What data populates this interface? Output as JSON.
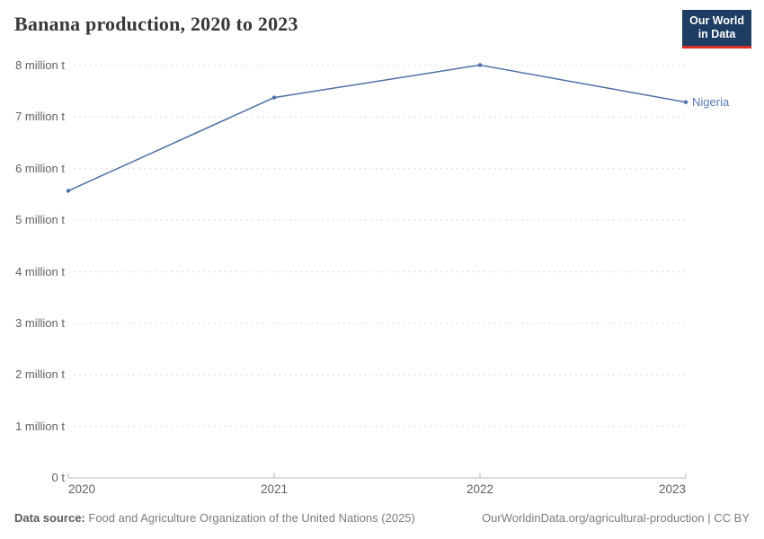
{
  "header": {
    "title": "Banana production, 2020 to 2023",
    "logo": {
      "line1": "Our World",
      "line2": "in Data"
    }
  },
  "chart_data": {
    "type": "line",
    "title": "Banana production, 2020 to 2023",
    "x": [
      2020,
      2021,
      2022,
      2023
    ],
    "x_tick_labels": [
      "2020",
      "2021",
      "2022",
      "2023"
    ],
    "series": [
      {
        "name": "Nigeria",
        "values": [
          5570000,
          7380000,
          8010000,
          7290000
        ],
        "color": "#4d6fa5"
      }
    ],
    "unit": "t",
    "xlabel": "",
    "ylabel": "",
    "ylim": [
      0,
      8000000
    ],
    "ytick_values": [
      0,
      1000000,
      2000000,
      3000000,
      4000000,
      5000000,
      6000000,
      7000000,
      8000000
    ],
    "ytick_labels": [
      "0 t",
      "1 million t",
      "2 million t",
      "3 million t",
      "4 million t",
      "5 million t",
      "6 million t",
      "7 million t",
      "8 million t"
    ],
    "grid": "horizontal-dashed",
    "legend": "end-of-line-label"
  },
  "footer": {
    "source_label": "Data source:",
    "source_text": "Food and Agriculture Organization of the United Nations (2025)",
    "link_text": "OurWorldinData.org/agricultural-production | CC BY"
  },
  "colors": {
    "line": "#4d6fa5",
    "entity_label": "#5a7ab5",
    "logo_bg": "#1d3d63",
    "logo_accent": "#dc2e27",
    "gridline": "#dcdcdc",
    "axis": "#b8b8b8"
  }
}
